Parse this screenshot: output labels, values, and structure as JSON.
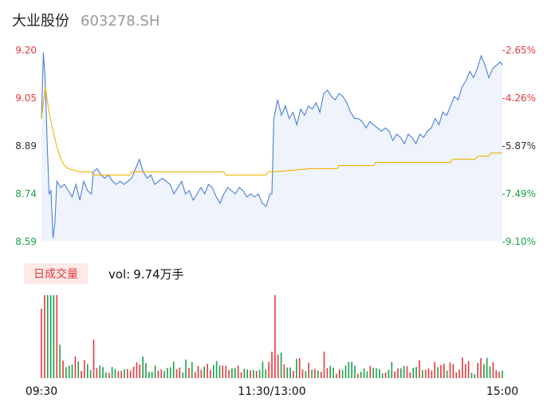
{
  "header": {
    "name": "大业股份",
    "code": "603278.SH"
  },
  "colors": {
    "price_line": "#4a7fd9",
    "avg_line": "#f0b400",
    "area_fill": "#eef3fc",
    "up": "#e8373d",
    "down": "#1aa14a",
    "grid": "#eeeeee",
    "axis_text": "#333333"
  },
  "chart_data": {
    "type": "line",
    "price_axis": {
      "ticks": [
        "9.20",
        "9.05",
        "8.89",
        "8.74",
        "8.59"
      ],
      "tick_colors": [
        "up",
        "up",
        "neutral",
        "down",
        "down"
      ],
      "ylim": [
        8.59,
        9.2
      ]
    },
    "pct_axis": {
      "ticks": [
        "-2.65%",
        "-4.26%",
        "-5.87%",
        "-7.49%",
        "-9.10%"
      ],
      "tick_colors": [
        "up",
        "up",
        "neutral",
        "down",
        "down"
      ]
    },
    "x_ticks": [
      "09:30",
      "11:30/13:00",
      "15:00"
    ],
    "x_range_minutes": 240,
    "price_points": [
      [
        0,
        8.98
      ],
      [
        1,
        9.19
      ],
      [
        2,
        9.1
      ],
      [
        3,
        8.9
      ],
      [
        4,
        8.74
      ],
      [
        5,
        8.75
      ],
      [
        6,
        8.6
      ],
      [
        7,
        8.65
      ],
      [
        8,
        8.78
      ],
      [
        10,
        8.76
      ],
      [
        12,
        8.77
      ],
      [
        14,
        8.75
      ],
      [
        16,
        8.73
      ],
      [
        18,
        8.77
      ],
      [
        20,
        8.72
      ],
      [
        22,
        8.78
      ],
      [
        24,
        8.75
      ],
      [
        26,
        8.74
      ],
      [
        27,
        8.81
      ],
      [
        29,
        8.82
      ],
      [
        31,
        8.8
      ],
      [
        33,
        8.79
      ],
      [
        35,
        8.8
      ],
      [
        37,
        8.78
      ],
      [
        39,
        8.77
      ],
      [
        41,
        8.78
      ],
      [
        43,
        8.77
      ],
      [
        45,
        8.78
      ],
      [
        47,
        8.79
      ],
      [
        49,
        8.82
      ],
      [
        51,
        8.85
      ],
      [
        53,
        8.81
      ],
      [
        55,
        8.79
      ],
      [
        57,
        8.8
      ],
      [
        59,
        8.77
      ],
      [
        61,
        8.78
      ],
      [
        63,
        8.79
      ],
      [
        65,
        8.78
      ],
      [
        67,
        8.77
      ],
      [
        69,
        8.74
      ],
      [
        71,
        8.76
      ],
      [
        73,
        8.78
      ],
      [
        75,
        8.74
      ],
      [
        77,
        8.75
      ],
      [
        79,
        8.72
      ],
      [
        81,
        8.74
      ],
      [
        83,
        8.76
      ],
      [
        85,
        8.74
      ],
      [
        87,
        8.77
      ],
      [
        89,
        8.76
      ],
      [
        91,
        8.73
      ],
      [
        93,
        8.71
      ],
      [
        95,
        8.74
      ],
      [
        97,
        8.76
      ],
      [
        99,
        8.75
      ],
      [
        101,
        8.74
      ],
      [
        103,
        8.76
      ],
      [
        105,
        8.75
      ],
      [
        107,
        8.73
      ],
      [
        109,
        8.74
      ],
      [
        111,
        8.73
      ],
      [
        113,
        8.74
      ],
      [
        115,
        8.71
      ],
      [
        117,
        8.7
      ],
      [
        119,
        8.74
      ],
      [
        120,
        8.74
      ],
      [
        121,
        8.98
      ],
      [
        123,
        9.04
      ],
      [
        125,
        8.99
      ],
      [
        127,
        9.02
      ],
      [
        129,
        8.98
      ],
      [
        131,
        9.0
      ],
      [
        133,
        8.96
      ],
      [
        135,
        9.01
      ],
      [
        137,
        8.99
      ],
      [
        139,
        9.02
      ],
      [
        141,
        9.01
      ],
      [
        143,
        9.03
      ],
      [
        145,
        9.0
      ],
      [
        147,
        9.06
      ],
      [
        149,
        9.07
      ],
      [
        151,
        9.05
      ],
      [
        153,
        9.04
      ],
      [
        155,
        9.06
      ],
      [
        157,
        9.05
      ],
      [
        159,
        9.03
      ],
      [
        161,
        9.0
      ],
      [
        163,
        8.98
      ],
      [
        165,
        8.98
      ],
      [
        167,
        8.97
      ],
      [
        169,
        8.95
      ],
      [
        171,
        8.97
      ],
      [
        173,
        8.96
      ],
      [
        175,
        8.95
      ],
      [
        177,
        8.94
      ],
      [
        179,
        8.95
      ],
      [
        181,
        8.94
      ],
      [
        183,
        8.91
      ],
      [
        185,
        8.93
      ],
      [
        187,
        8.92
      ],
      [
        189,
        8.9
      ],
      [
        191,
        8.93
      ],
      [
        193,
        8.92
      ],
      [
        195,
        8.9
      ],
      [
        197,
        8.93
      ],
      [
        199,
        8.92
      ],
      [
        201,
        8.94
      ],
      [
        203,
        8.95
      ],
      [
        205,
        8.98
      ],
      [
        207,
        8.96
      ],
      [
        209,
        9.0
      ],
      [
        211,
        8.99
      ],
      [
        213,
        9.02
      ],
      [
        215,
        9.05
      ],
      [
        217,
        9.04
      ],
      [
        219,
        9.08
      ],
      [
        221,
        9.1
      ],
      [
        223,
        9.13
      ],
      [
        225,
        9.11
      ],
      [
        227,
        9.14
      ],
      [
        229,
        9.18
      ],
      [
        231,
        9.15
      ],
      [
        233,
        9.11
      ],
      [
        235,
        9.14
      ],
      [
        237,
        9.15
      ],
      [
        239,
        9.16
      ],
      [
        240,
        9.15
      ]
    ],
    "avg_points": [
      [
        0,
        8.98
      ],
      [
        2,
        9.08
      ],
      [
        4,
        9.0
      ],
      [
        6,
        8.94
      ],
      [
        8,
        8.89
      ],
      [
        10,
        8.85
      ],
      [
        12,
        8.83
      ],
      [
        14,
        8.82
      ],
      [
        20,
        8.81
      ],
      [
        25,
        8.81
      ],
      [
        26,
        8.81
      ],
      [
        27,
        8.8
      ],
      [
        30,
        8.8
      ],
      [
        46,
        8.8
      ],
      [
        47,
        8.81
      ],
      [
        78,
        8.81
      ],
      [
        79,
        8.81
      ],
      [
        95,
        8.81
      ],
      [
        96,
        8.8
      ],
      [
        117,
        8.8
      ],
      [
        118,
        8.81
      ],
      [
        121,
        8.81
      ],
      [
        140,
        8.82
      ],
      [
        141,
        8.82
      ],
      [
        154,
        8.82
      ],
      [
        155,
        8.83
      ],
      [
        173,
        8.83
      ],
      [
        174,
        8.84
      ],
      [
        213,
        8.84
      ],
      [
        214,
        8.85
      ],
      [
        226,
        8.85
      ],
      [
        227,
        8.86
      ],
      [
        233,
        8.86
      ],
      [
        234,
        8.87
      ],
      [
        240,
        8.87
      ]
    ],
    "vol_label": "vol:",
    "vol_value": "9.74万手",
    "vol_tab_label": "日成交量"
  }
}
